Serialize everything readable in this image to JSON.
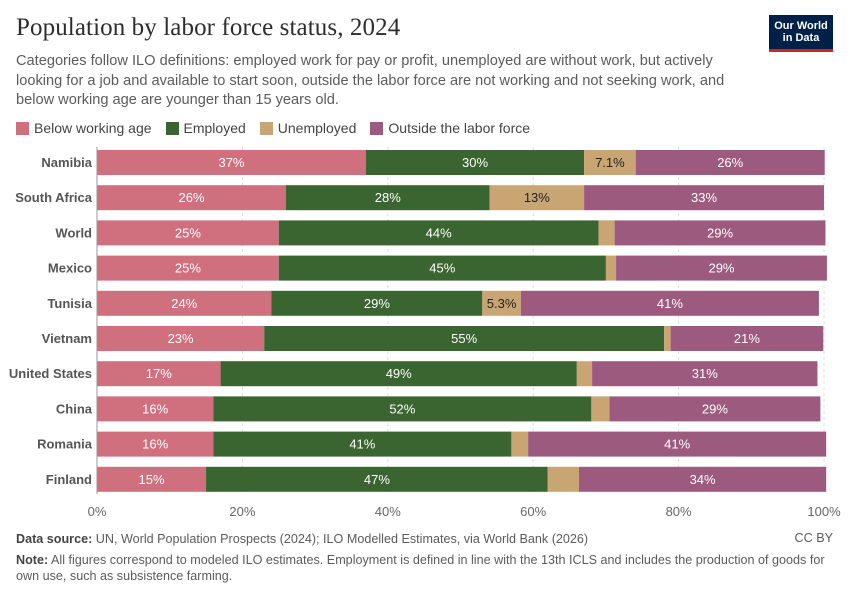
{
  "header": {
    "title": "Population by labor force status, 2024",
    "subtitle": "Categories follow ILO definitions: employed work for pay or profit, unemployed are without work, but actively looking for a job and available to start soon, outside the labor force are not working and not seeking work, and below working age are younger than 15 years old.",
    "logo_line1": "Our World",
    "logo_line2": "in Data"
  },
  "footer": {
    "source_label": "Data source:",
    "source_text": "UN, World Population Prospects (2024); ILO Modelled Estimates, via World Bank (2026)",
    "note_label": "Note:",
    "note_text": "All figures correspond to modeled ILO estimates. Employment is defined in line with the 13th ICLS and includes the production of goods for own use, such as subsistence farming.",
    "license": "CC BY"
  },
  "colors": {
    "below": "#d0707f",
    "employed": "#3a6430",
    "unemployed": "#c9a574",
    "outside": "#9c5a7f"
  },
  "chart_data": {
    "type": "bar",
    "orientation": "horizontal",
    "stacked": true,
    "xlim": [
      0,
      100
    ],
    "x_ticks": [
      "0%",
      "20%",
      "40%",
      "60%",
      "80%",
      "100%"
    ],
    "legend_position": "top-left",
    "grid": true,
    "categories": [
      "Namibia",
      "South Africa",
      "World",
      "Mexico",
      "Tunisia",
      "Vietnam",
      "United States",
      "China",
      "Romania",
      "Finland"
    ],
    "series": [
      {
        "name": "Below working age",
        "color_key": "below",
        "values": [
          37,
          26,
          25,
          25,
          24,
          23,
          17,
          16,
          16,
          15
        ],
        "labels": [
          "37%",
          "26%",
          "25%",
          "25%",
          "24%",
          "23%",
          "17%",
          "16%",
          "16%",
          "15%"
        ]
      },
      {
        "name": "Employed",
        "color_key": "employed",
        "values": [
          30,
          28,
          44,
          45,
          29,
          55,
          49,
          52,
          41,
          47
        ],
        "labels": [
          "30%",
          "28%",
          "44%",
          "45%",
          "29%",
          "55%",
          "49%",
          "52%",
          "41%",
          "47%"
        ]
      },
      {
        "name": "Unemployed",
        "color_key": "unemployed",
        "values": [
          7.1,
          13,
          2.2,
          1.4,
          5.3,
          0.9,
          2.1,
          2.5,
          2.3,
          4.3
        ],
        "labels": [
          "7.1%",
          "13%",
          "",
          "",
          "5.3%",
          "",
          "",
          "",
          "",
          ""
        ]
      },
      {
        "name": "Outside the labor force",
        "color_key": "outside",
        "values": [
          26,
          33,
          29,
          29,
          41,
          21,
          31,
          29,
          41,
          34
        ],
        "labels": [
          "26%",
          "33%",
          "29%",
          "29%",
          "41%",
          "21%",
          "31%",
          "29%",
          "41%",
          "34%"
        ]
      }
    ]
  }
}
